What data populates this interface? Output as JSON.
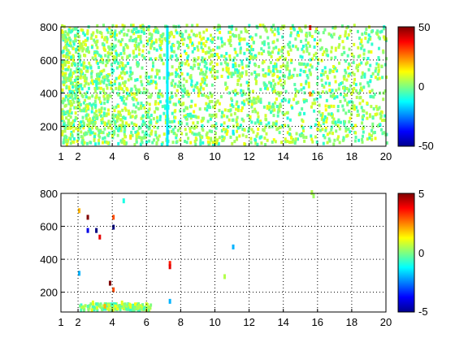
{
  "chart_data": [
    {
      "type": "heatmap",
      "title": "",
      "xlabel": "",
      "ylabel": "",
      "xlim": [
        1,
        20
      ],
      "ylim": [
        80,
        800
      ],
      "xticks": [
        "1",
        "2",
        "4",
        "6",
        "8",
        "10",
        "12",
        "14",
        "16",
        "18",
        "20"
      ],
      "yticks": [
        "200",
        "400",
        "600",
        "800"
      ],
      "grid": true,
      "colorbar": {
        "range": [
          -50,
          50
        ],
        "ticks": [
          "50",
          "0",
          "-50"
        ],
        "colormap": "jet"
      },
      "description_pattern": "dense scattered values near 0 (cyan/green/yellow) across most of the domain, denser for x below 8, with a strong vertical band near x=7.2 and isolated orange/red cells near x=15.5",
      "cells": [
        [
          1.2,
          700,
          5
        ],
        [
          1.5,
          500,
          -5
        ],
        [
          2.0,
          650,
          8
        ],
        [
          2.5,
          300,
          12
        ],
        [
          3.0,
          450,
          -8
        ],
        [
          3.5,
          200,
          10
        ],
        [
          4.0,
          600,
          6
        ],
        [
          4.5,
          350,
          -10
        ],
        [
          5.0,
          120,
          15
        ],
        [
          5.5,
          400,
          4
        ],
        [
          6.0,
          250,
          -6
        ],
        [
          6.5,
          700,
          9
        ],
        [
          7.2,
          500,
          -15
        ],
        [
          7.2,
          300,
          -12
        ],
        [
          7.2,
          150,
          -18
        ],
        [
          7.4,
          650,
          -10
        ],
        [
          8.5,
          700,
          12
        ],
        [
          9.0,
          400,
          7
        ],
        [
          10.0,
          250,
          6
        ],
        [
          11.0,
          550,
          -12
        ],
        [
          11.0,
          150,
          -14
        ],
        [
          12.0,
          600,
          8
        ],
        [
          13.0,
          300,
          10
        ],
        [
          14.0,
          450,
          5
        ],
        [
          15.5,
          780,
          35
        ],
        [
          15.5,
          380,
          25
        ],
        [
          16.0,
          200,
          12
        ],
        [
          17.0,
          650,
          9
        ],
        [
          18.0,
          400,
          8
        ],
        [
          18.5,
          700,
          11
        ],
        [
          19.0,
          250,
          6
        ],
        [
          19.5,
          550,
          7
        ]
      ]
    },
    {
      "type": "heatmap",
      "title": "",
      "xlabel": "",
      "ylabel": "",
      "xlim": [
        1,
        20
      ],
      "ylim": [
        80,
        800
      ],
      "xticks": [
        "1",
        "2",
        "4",
        "6",
        "8",
        "10",
        "12",
        "14",
        "16",
        "18",
        "20"
      ],
      "yticks": [
        "200",
        "400",
        "600",
        "800"
      ],
      "grid": true,
      "colorbar": {
        "range": [
          -5,
          5
        ],
        "ticks": [
          "5",
          "0",
          "-5"
        ],
        "colormap": "jet"
      },
      "description_pattern": "mostly empty; sparse values near 0 with a band along the bottom for x between 2 and 6, isolated red/blue cells near x=2.5 and x=4, an orange streak near x=7.3, y=360",
      "cells": [
        [
          2.0,
          680,
          2
        ],
        [
          2.0,
          300,
          -2
        ],
        [
          2.5,
          640,
          5
        ],
        [
          2.5,
          560,
          -4
        ],
        [
          2.8,
          120,
          1
        ],
        [
          3.0,
          560,
          -5
        ],
        [
          3.2,
          520,
          4
        ],
        [
          3.5,
          100,
          2
        ],
        [
          3.8,
          240,
          5
        ],
        [
          4.0,
          640,
          3
        ],
        [
          4.0,
          580,
          -5
        ],
        [
          4.0,
          200,
          3
        ],
        [
          4.5,
          120,
          1
        ],
        [
          4.6,
          740,
          -1
        ],
        [
          5.0,
          100,
          1
        ],
        [
          5.5,
          100,
          0.5
        ],
        [
          7.3,
          360,
          3.5
        ],
        [
          7.3,
          340,
          4
        ],
        [
          7.3,
          130,
          -2
        ],
        [
          10.5,
          280,
          0.5
        ],
        [
          11.0,
          460,
          -2
        ],
        [
          15.6,
          790,
          0.5
        ],
        [
          15.7,
          770,
          0.3
        ]
      ]
    }
  ]
}
